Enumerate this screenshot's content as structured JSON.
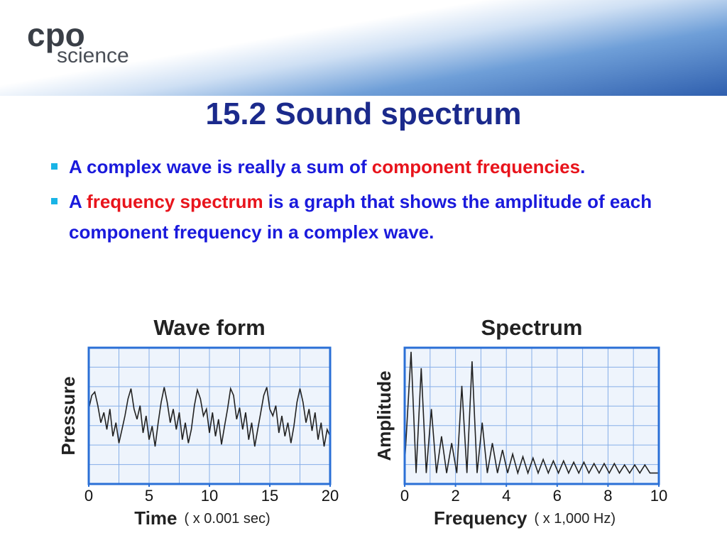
{
  "header": {
    "logo_main": "cpo",
    "logo_sub": "science"
  },
  "title": "15.2 Sound spectrum",
  "bullets": [
    [
      {
        "text": "A complex wave is really a sum of ",
        "color": "#1a1adc"
      },
      {
        "text": "component frequencies",
        "color": "#e8141c"
      },
      {
        "text": ".",
        "color": "#1a1adc"
      }
    ],
    [
      {
        "text": "A ",
        "color": "#1a1adc"
      },
      {
        "text": "frequency spectrum",
        "color": "#e8141c"
      },
      {
        "text": " is a graph that shows the amplitude of each component frequency in a complex wave.",
        "color": "#1a1adc"
      }
    ]
  ],
  "chart_data": [
    {
      "type": "line",
      "title": "Wave form",
      "ylabel": "Pressure",
      "xlabel": "Time",
      "xlabel_unit": "( x 0.001 sec)",
      "xlim": [
        0,
        20
      ],
      "xticks": [
        0,
        5,
        10,
        15,
        20
      ],
      "ylim": [
        -1,
        1
      ],
      "grid": true,
      "color": "#222222",
      "x": [
        0,
        0.25,
        0.5,
        0.75,
        1,
        1.25,
        1.5,
        1.75,
        2,
        2.25,
        2.5,
        2.75,
        3,
        3.25,
        3.5,
        3.75,
        4,
        4.25,
        4.5,
        4.75,
        5,
        5.25,
        5.5,
        5.75,
        6,
        6.25,
        6.5,
        6.75,
        7,
        7.25,
        7.5,
        7.75,
        8,
        8.25,
        8.5,
        8.75,
        9,
        9.25,
        9.5,
        9.75,
        10,
        10.25,
        10.5,
        10.75,
        11,
        11.25,
        11.5,
        11.75,
        12,
        12.25,
        12.5,
        12.75,
        13,
        13.25,
        13.5,
        13.75,
        14,
        14.25,
        14.5,
        14.75,
        15,
        15.25,
        15.5,
        15.75,
        16,
        16.25,
        16.5,
        16.75,
        17,
        17.25,
        17.5,
        17.75,
        18,
        18.25,
        18.5,
        18.75,
        19,
        19.25,
        19.5,
        19.75,
        20
      ],
      "values": [
        0.1,
        0.3,
        0.35,
        0.15,
        -0.1,
        0.05,
        -0.2,
        0.1,
        -0.3,
        -0.1,
        -0.4,
        -0.2,
        0.0,
        0.25,
        0.4,
        0.1,
        -0.05,
        0.15,
        -0.25,
        0.0,
        -0.35,
        -0.15,
        -0.45,
        -0.1,
        0.2,
        0.42,
        0.2,
        -0.1,
        0.1,
        -0.2,
        0.05,
        -0.35,
        -0.1,
        -0.4,
        -0.2,
        0.15,
        0.38,
        0.25,
        0.0,
        0.1,
        -0.25,
        0.05,
        -0.3,
        -0.05,
        -0.42,
        -0.15,
        0.1,
        0.4,
        0.3,
        -0.05,
        0.12,
        -0.2,
        0.05,
        -0.35,
        -0.1,
        -0.45,
        -0.2,
        0.05,
        0.3,
        0.42,
        0.1,
        0.0,
        0.15,
        -0.25,
        0.0,
        -0.3,
        -0.1,
        -0.4,
        -0.15,
        0.2,
        0.4,
        0.2,
        -0.1,
        0.1,
        -0.22,
        0.05,
        -0.35,
        -0.1,
        -0.45,
        -0.2,
        -0.3
      ]
    },
    {
      "type": "line",
      "title": "Spectrum",
      "ylabel": "Amplitude",
      "xlabel": "Frequency",
      "xlabel_unit": "( x 1,000 Hz)",
      "xlim": [
        0,
        10
      ],
      "xticks": [
        0,
        2,
        4,
        6,
        8,
        10
      ],
      "ylim": [
        0,
        1
      ],
      "grid": true,
      "color": "#222222",
      "x": [
        0,
        0.25,
        0.45,
        0.65,
        0.85,
        1.05,
        1.25,
        1.45,
        1.65,
        1.85,
        2.05,
        2.25,
        2.45,
        2.65,
        2.85,
        3.05,
        3.25,
        3.45,
        3.65,
        3.85,
        4.05,
        4.25,
        4.45,
        4.65,
        4.85,
        5.05,
        5.25,
        5.45,
        5.65,
        5.85,
        6.05,
        6.25,
        6.45,
        6.65,
        6.85,
        7.05,
        7.25,
        7.45,
        7.65,
        7.85,
        8.05,
        8.25,
        8.45,
        8.65,
        8.85,
        9.05,
        9.25,
        9.45,
        9.65,
        10
      ],
      "values": [
        0.15,
        0.97,
        0.08,
        0.85,
        0.08,
        0.55,
        0.08,
        0.35,
        0.08,
        0.3,
        0.08,
        0.72,
        0.08,
        0.9,
        0.08,
        0.45,
        0.08,
        0.3,
        0.08,
        0.25,
        0.08,
        0.22,
        0.08,
        0.2,
        0.08,
        0.19,
        0.08,
        0.18,
        0.08,
        0.17,
        0.08,
        0.17,
        0.08,
        0.16,
        0.08,
        0.16,
        0.08,
        0.15,
        0.08,
        0.15,
        0.08,
        0.15,
        0.08,
        0.14,
        0.08,
        0.14,
        0.08,
        0.14,
        0.08,
        0.08
      ]
    }
  ]
}
